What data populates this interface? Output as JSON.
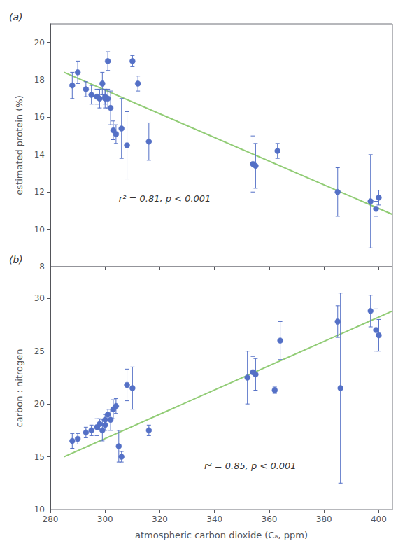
{
  "chart_data": [
    {
      "type": "scatter",
      "title": "(a)",
      "annotation": "r² = 0.81, p < 0.001",
      "ylabel": "estimated protein (%)",
      "xlim": [
        280,
        405
      ],
      "xticks": [
        280,
        300,
        320,
        340,
        360,
        380,
        400
      ],
      "ylim": [
        8,
        21
      ],
      "yticks": [
        8,
        10,
        12,
        14,
        16,
        18,
        20
      ],
      "grid": false,
      "tick_labels": "y",
      "series": [
        {
          "type": "scatter",
          "marker": "circle",
          "x": [
            288,
            290,
            293,
            295,
            297,
            298,
            299,
            300,
            300,
            301,
            301,
            302,
            303,
            304,
            306,
            308,
            310,
            312,
            316,
            354,
            355,
            363,
            385,
            397,
            399,
            400
          ],
          "values": [
            17.7,
            18.4,
            17.5,
            17.2,
            17.1,
            17.0,
            17.8,
            17.0,
            17.1,
            17.0,
            19.0,
            16.5,
            15.3,
            15.1,
            15.4,
            14.5,
            19.0,
            17.8,
            14.7,
            13.5,
            13.4,
            14.2,
            12.0,
            11.5,
            11.1,
            11.7
          ],
          "yerr": [
            0.7,
            0.6,
            0.4,
            0.5,
            0.4,
            0.5,
            0.6,
            0.5,
            0.4,
            0.5,
            0.5,
            0.9,
            0.5,
            0.5,
            1.6,
            1.8,
            0.3,
            0.4,
            1.0,
            1.5,
            1.2,
            0.4,
            1.3,
            2.5,
            0.4,
            0.4
          ]
        },
        {
          "type": "line",
          "line_style": "solid",
          "x": [
            285,
            405
          ],
          "values": [
            18.4,
            10.8
          ]
        }
      ]
    },
    {
      "type": "scatter",
      "title": "(b)",
      "annotation": "r² = 0.85, p < 0.001",
      "ylabel": "carbon : nitrogen",
      "xlabel": "atmospheric carbon dioxide (Cₐ, ppm)",
      "xlim": [
        280,
        405
      ],
      "xticks": [
        280,
        300,
        320,
        340,
        360,
        380,
        400
      ],
      "ylim": [
        10,
        33
      ],
      "yticks": [
        10,
        15,
        20,
        25,
        30
      ],
      "grid": false,
      "series": [
        {
          "type": "scatter",
          "marker": "circle",
          "x": [
            288,
            290,
            293,
            295,
            297,
            298,
            299,
            300,
            300,
            301,
            302,
            303,
            304,
            305,
            306,
            308,
            310,
            316,
            352,
            354,
            355,
            362,
            364,
            385,
            386,
            397,
            399,
            400
          ],
          "values": [
            16.5,
            16.7,
            17.3,
            17.5,
            17.8,
            18.1,
            17.5,
            18.0,
            18.5,
            19.0,
            18.5,
            19.5,
            19.8,
            16.0,
            15.0,
            21.8,
            21.5,
            17.5,
            22.5,
            23.0,
            22.8,
            21.3,
            26.0,
            27.8,
            21.5,
            28.8,
            27.0,
            26.5
          ],
          "yerr": [
            0.7,
            0.5,
            0.5,
            0.5,
            0.8,
            0.5,
            1.0,
            0.5,
            0.5,
            0.5,
            1.0,
            0.9,
            0.7,
            1.5,
            0.5,
            1.5,
            2.0,
            0.5,
            2.5,
            1.5,
            1.5,
            0.3,
            1.8,
            1.5,
            9.0,
            1.5,
            2.0,
            1.5
          ]
        },
        {
          "type": "line",
          "line_style": "solid",
          "x": [
            285,
            405
          ],
          "values": [
            15.0,
            28.8
          ]
        }
      ]
    }
  ]
}
